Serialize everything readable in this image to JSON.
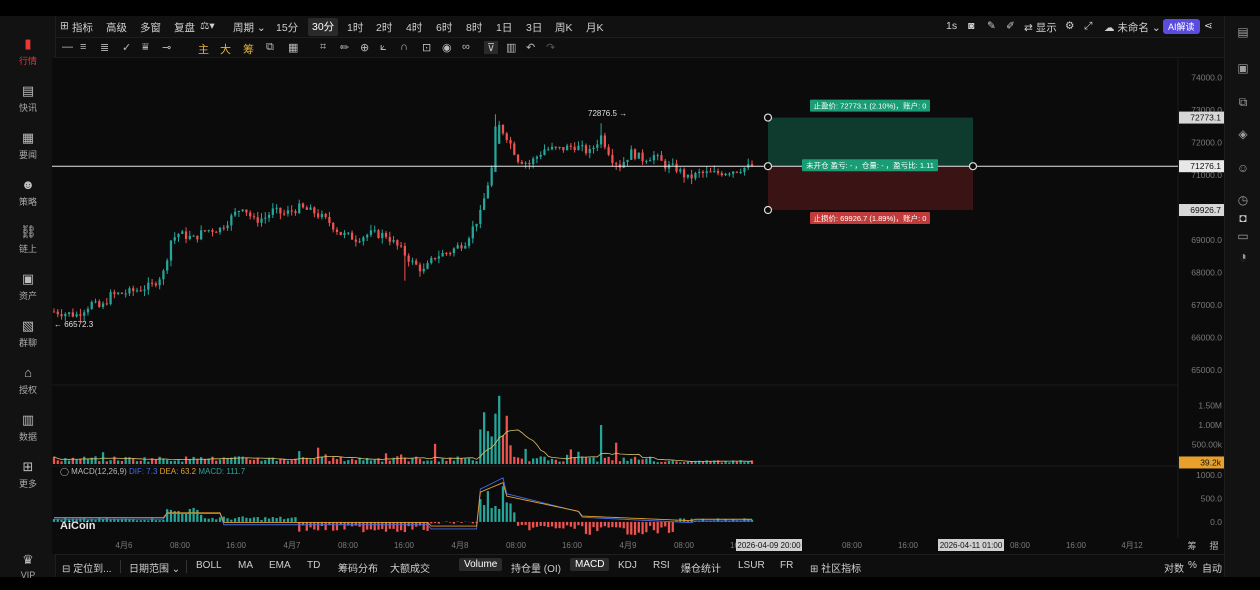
{
  "sidebar": {
    "items": [
      {
        "label": "行情",
        "icon": "bar-chart-icon",
        "active": true
      },
      {
        "label": "快讯",
        "icon": "news-icon"
      },
      {
        "label": "要闻",
        "icon": "document-icon"
      },
      {
        "label": "策略",
        "icon": "robot-icon"
      },
      {
        "label": "链上",
        "icon": "chain-icon"
      },
      {
        "label": "资产",
        "icon": "wallet-icon"
      },
      {
        "label": "群聊",
        "icon": "chat-icon"
      },
      {
        "label": "授权",
        "icon": "key-icon"
      },
      {
        "label": "数据",
        "icon": "data-icon"
      },
      {
        "label": "更多",
        "icon": "grid-icon"
      },
      {
        "label": "VIP",
        "icon": "crown-icon"
      }
    ]
  },
  "toolbar": {
    "indicators": "指标",
    "advanced": "高级",
    "multi": "多窗",
    "replay": "复盘",
    "period_label": "周期",
    "intervals": [
      "15分",
      "30分",
      "1时",
      "2时",
      "4时",
      "6时",
      "8时",
      "1日",
      "3日",
      "周K",
      "月K"
    ],
    "selected_interval": "30分",
    "right": {
      "seconds": "1s",
      "display": "显示",
      "unnamed": "未命名",
      "ai": "AI解读"
    }
  },
  "drawbar": {
    "main": "主",
    "big": "大",
    "chip": "筹"
  },
  "chart": {
    "price_axis": [
      "74000.0",
      "73000.0",
      "72000.0",
      "71000.0",
      "70000.0",
      "69000.0",
      "68000.0",
      "67000.0",
      "66000.0",
      "65000.0"
    ],
    "current_price": "71276.1",
    "tp_price": "72773.1",
    "sl_price": "69926.7",
    "high_label": "72876.5 →",
    "low_label": "← 66572.3",
    "tp_text": "止盈价: 72773.1 (2.10%)，账户: 0",
    "entry_text": "未开仓 盈亏: - ，仓量: - ，盈亏比: 1.11",
    "sl_text": "止损价: 69926.7 (1.89%)，账户: 0",
    "vol_axis": [
      "1.50M",
      "1.00M",
      "500.00k"
    ],
    "vol_current": "39.2k",
    "macd_axis": [
      "1000.0",
      "500.0",
      "0.0"
    ],
    "macd_legend": {
      "name": "MACD(12,26,9)",
      "dif": "DIF: 7.3",
      "dea": "DEA: 63.2",
      "macd": "MACD: 111.7"
    },
    "watermark": "AiCoin",
    "time_labels": [
      "4月6",
      "08:00",
      "16:00",
      "4月7",
      "08:00",
      "16:00",
      "4月8",
      "08:00",
      "16:00",
      "4月9",
      "08:00",
      "16:00",
      "08:00",
      "16:00",
      "08:00",
      "16:00",
      "4月12"
    ],
    "time_badge_left": "2026-04-09 20:00",
    "time_badge_right": "2026-04-11 01:00",
    "axis_corner": [
      "筹",
      "摺"
    ],
    "colors": {
      "up": "#26a69a",
      "down": "#ef5350",
      "tp_fill": "#0f3a2e",
      "sl_fill": "#3a1414",
      "tp_label": "#1a9c74",
      "sl_label": "#c23b3b",
      "vol_badge": "#e8a02d"
    }
  },
  "bottom": {
    "locate": "定位到...",
    "date_range": "日期范围",
    "tabs": [
      "BOLL",
      "MA",
      "EMA",
      "TD",
      "筹码分布",
      "大额成交",
      "Volume",
      "持仓量 (OI)",
      "MACD",
      "KDJ",
      "RSI",
      "爆仓统计",
      "LSUR",
      "FR",
      "社区指标"
    ],
    "selected": [
      "Volume",
      "MACD"
    ],
    "right": {
      "log": "对数",
      "pct": "%",
      "auto": "自动"
    }
  }
}
